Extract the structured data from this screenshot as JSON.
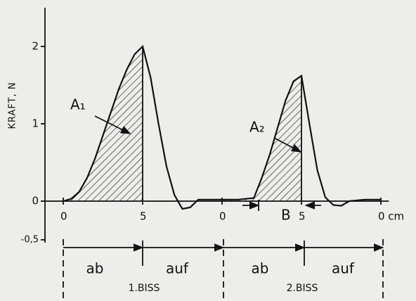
{
  "chart_data": {
    "type": "line",
    "ylabel": "KRAFT, N",
    "x": [
      0,
      0.5,
      1,
      1.5,
      2,
      2.5,
      3,
      3.5,
      4,
      4.5,
      5,
      5.5,
      6,
      6.5,
      7,
      7.5,
      8,
      8.5,
      9,
      10,
      11,
      12,
      12.5,
      13,
      13.5,
      14,
      14.5,
      15,
      15.5,
      16,
      16.5,
      17,
      17.5,
      18,
      19,
      20
    ],
    "series": [
      {
        "color": "#111111",
        "values": [
          0,
          0.03,
          0.12,
          0.3,
          0.55,
          0.85,
          1.15,
          1.45,
          1.7,
          1.9,
          2.0,
          1.6,
          1.0,
          0.45,
          0.08,
          -0.1,
          -0.08,
          0.02,
          0.02,
          0.02,
          0.02,
          0.04,
          0.3,
          0.6,
          0.95,
          1.3,
          1.55,
          1.62,
          1.0,
          0.4,
          0.05,
          -0.05,
          -0.06,
          0.0,
          0.02,
          0.02
        ]
      }
    ],
    "xlim": [
      -1.2,
      20.5
    ],
    "ylim": [
      -0.5,
      2.5
    ],
    "yticks": [
      {
        "value": -0.5,
        "label": "-0,5"
      },
      0,
      1,
      2
    ],
    "xticks": [
      0,
      5,
      {
        "value": 10,
        "label": "0"
      },
      {
        "value": 15,
        "label": "5"
      },
      {
        "value": 20,
        "label": "0 cm"
      }
    ],
    "grid": false,
    "annotations": [
      {
        "text": "A₁"
      },
      {
        "text": "A₂"
      },
      {
        "text": "B"
      }
    ],
    "phases": [
      "ab",
      "auf",
      "ab",
      "auf"
    ],
    "bites": [
      "1.BISS",
      "2.BISS"
    ]
  }
}
